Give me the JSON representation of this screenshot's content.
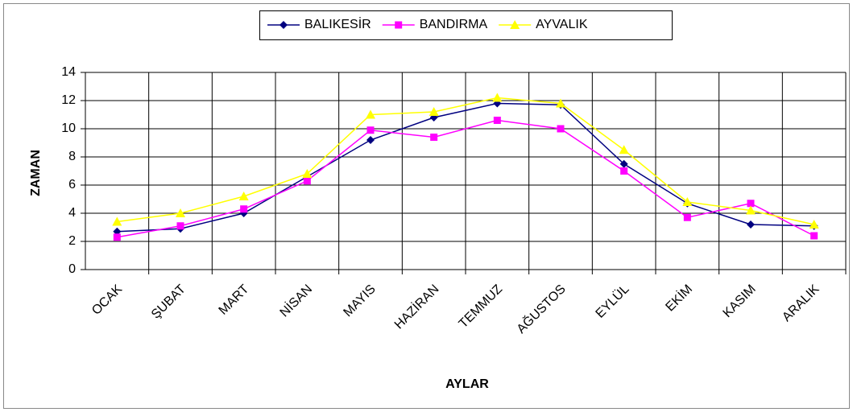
{
  "chart_data": {
    "type": "line",
    "categories": [
      "OCAK",
      "ŞUBAT",
      "MART",
      "NİSAN",
      "MAYIS",
      "HAZİRAN",
      "TEMMUZ",
      "AĞUSTOS",
      "EYLÜL",
      "EKİM",
      "KASIM",
      "ARALIK"
    ],
    "series": [
      {
        "name": "BALIKESİR",
        "color": "#000080",
        "marker": "diamond",
        "values": [
          2.7,
          2.9,
          4.0,
          6.6,
          9.2,
          10.8,
          11.8,
          11.7,
          7.5,
          4.7,
          3.2,
          3.1
        ]
      },
      {
        "name": "BANDIRMA",
        "color": "#ff00ff",
        "marker": "square",
        "values": [
          2.3,
          3.1,
          4.3,
          6.3,
          9.9,
          9.4,
          10.6,
          10.0,
          7.0,
          3.7,
          4.7,
          2.4
        ]
      },
      {
        "name": "AYVALIK",
        "color": "#ffff00",
        "marker": "triangle",
        "values": [
          3.4,
          4.0,
          5.2,
          6.8,
          11.0,
          11.2,
          12.2,
          11.8,
          8.5,
          4.8,
          4.2,
          3.2
        ]
      }
    ],
    "xlabel": "AYLAR",
    "ylabel": "ZAMAN",
    "ylim": [
      0,
      14
    ],
    "yticks": [
      0,
      2,
      4,
      6,
      8,
      10,
      12,
      14
    ],
    "grid": true,
    "legend": "top"
  }
}
